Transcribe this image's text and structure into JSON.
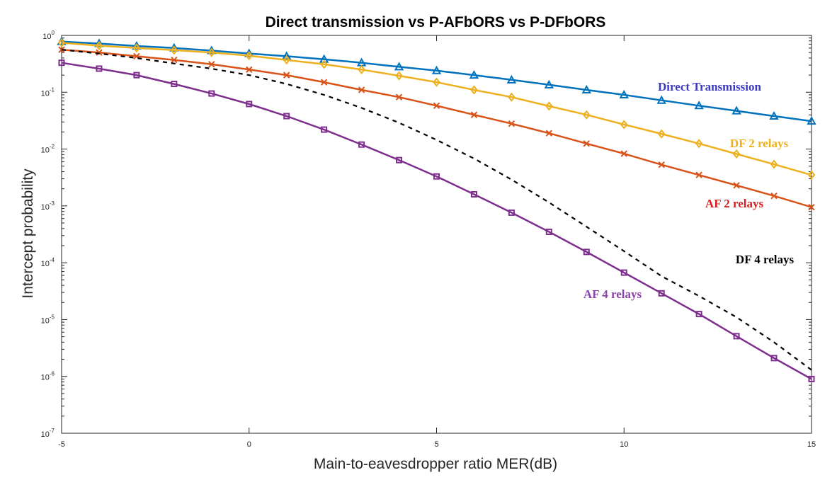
{
  "chart_data": {
    "type": "line",
    "title": "Direct transmission vs P-AFbORS vs P-DFbORS",
    "xlabel": "Main-to-eavesdropper ratio MER(dB)",
    "ylabel": "Intercept probability",
    "xlim": [
      -5,
      15
    ],
    "ylim": [
      1e-07,
      1
    ],
    "yscale": "log",
    "grid": false,
    "x_ticks": [
      "-5",
      "0",
      "5",
      "10",
      "15"
    ],
    "y_ticks": [
      "-7",
      "-6",
      "-5",
      "-4",
      "-3",
      "-2",
      "-1",
      "0"
    ],
    "series": [
      {
        "name": "Direct Transmission",
        "color": "#0072BD",
        "label_color": "#3A3AC0",
        "marker": "triangle",
        "dashed": false,
        "x": [
          -5,
          -4,
          -3,
          -2,
          -1,
          0,
          1,
          2,
          3,
          4,
          5,
          6,
          7,
          8,
          9,
          10,
          11,
          12,
          13,
          14,
          15
        ],
        "y": [
          0.78,
          0.72,
          0.65,
          0.6,
          0.54,
          0.48,
          0.43,
          0.38,
          0.33,
          0.28,
          0.24,
          0.2,
          0.165,
          0.135,
          0.11,
          0.09,
          0.072,
          0.058,
          0.047,
          0.038,
          0.031
        ]
      },
      {
        "name": "DF 2 relays",
        "color": "#EDB120",
        "label_color": "#EDB120",
        "marker": "diamond",
        "dashed": false,
        "x": [
          -5,
          -4,
          -3,
          -2,
          -1,
          0,
          1,
          2,
          3,
          4,
          5,
          6,
          7,
          8,
          9,
          10,
          11,
          12,
          13,
          14,
          15
        ],
        "y": [
          0.74,
          0.66,
          0.6,
          0.55,
          0.5,
          0.44,
          0.37,
          0.31,
          0.25,
          0.195,
          0.15,
          0.11,
          0.082,
          0.057,
          0.04,
          0.027,
          0.0185,
          0.0125,
          0.0082,
          0.0054,
          0.0035
        ]
      },
      {
        "name": "AF 2 relays",
        "color": "#D95319",
        "label_color": "#D62020",
        "marker": "x",
        "dashed": false,
        "x": [
          -5,
          -4,
          -3,
          -2,
          -1,
          0,
          1,
          2,
          3,
          4,
          5,
          6,
          7,
          8,
          9,
          10,
          11,
          12,
          13,
          14,
          15
        ],
        "y": [
          0.56,
          0.5,
          0.43,
          0.37,
          0.31,
          0.25,
          0.2,
          0.15,
          0.11,
          0.082,
          0.058,
          0.04,
          0.028,
          0.019,
          0.0125,
          0.0083,
          0.0053,
          0.0035,
          0.0023,
          0.0015,
          0.00095
        ]
      },
      {
        "name": "DF 4 relays",
        "color": "#000000",
        "label_color": "#000000",
        "marker": "none",
        "dashed": true,
        "x": [
          -5,
          -4,
          -3,
          -2,
          -1,
          0,
          1,
          2,
          3,
          4,
          5,
          6,
          7,
          8,
          9,
          10,
          11,
          12,
          13,
          14,
          15
        ],
        "y": [
          0.56,
          0.48,
          0.4,
          0.32,
          0.26,
          0.2,
          0.14,
          0.09,
          0.053,
          0.029,
          0.0145,
          0.0068,
          0.0029,
          0.00115,
          0.00043,
          0.00016,
          5.8e-05,
          2.6e-05,
          1.1e-05,
          4e-06,
          1.3e-06
        ]
      },
      {
        "name": "AF 4 relays",
        "color": "#7E2F8E",
        "label_color": "#8E44AD",
        "marker": "square",
        "dashed": false,
        "x": [
          -5,
          -4,
          -3,
          -2,
          -1,
          0,
          1,
          2,
          3,
          4,
          5,
          6,
          7,
          8,
          9,
          10,
          11,
          12,
          13,
          14,
          15
        ],
        "y": [
          0.33,
          0.26,
          0.2,
          0.14,
          0.095,
          0.062,
          0.038,
          0.022,
          0.012,
          0.0064,
          0.0033,
          0.0016,
          0.00076,
          0.00035,
          0.000155,
          6.7e-05,
          2.9e-05,
          1.25e-05,
          5.1e-06,
          2.1e-06,
          9e-07
        ]
      }
    ]
  }
}
